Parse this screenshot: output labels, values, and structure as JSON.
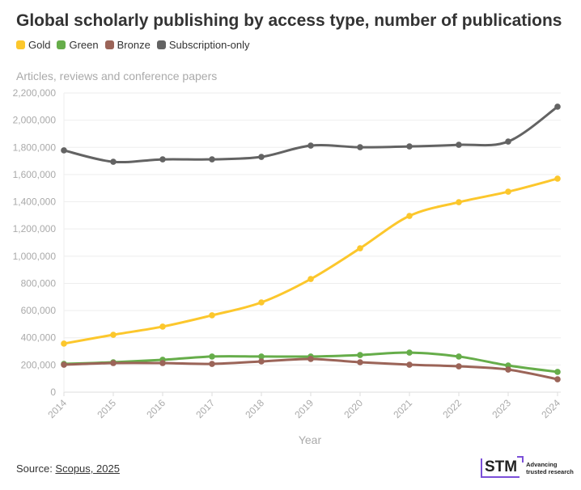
{
  "header": {
    "title": "Global scholarly publishing by access type, number of publications",
    "subtitle": "Articles, reviews and conference papers"
  },
  "footer": {
    "source_label": "Source: ",
    "source_link": "Scopus, 2025",
    "logo_text": "STM",
    "logo_tagline": "Advancing trusted research"
  },
  "chart_data": {
    "type": "line",
    "title": "Global scholarly publishing by access type, number of publications",
    "subtitle": "Articles, reviews and conference papers",
    "xlabel": "Year",
    "ylabel": "",
    "x": [
      "2014",
      "2015",
      "2016",
      "2017",
      "2018",
      "2019",
      "2020",
      "2021",
      "2022",
      "2023",
      "2024"
    ],
    "ylim": [
      0,
      2200000
    ],
    "yticks": [
      0,
      200000,
      400000,
      600000,
      800000,
      1000000,
      1200000,
      1400000,
      1600000,
      1800000,
      2000000,
      2200000
    ],
    "ytick_labels": [
      "0",
      "200,000",
      "400,000",
      "600,000",
      "800,000",
      "1,000,000",
      "1,200,000",
      "1,400,000",
      "1,600,000",
      "1,800,000",
      "2,000,000",
      "2,200,000"
    ],
    "grid": true,
    "legend": "top-left",
    "series": [
      {
        "name": "Gold",
        "color": "#fcc72c",
        "values": [
          357000,
          422000,
          482000,
          565000,
          660000,
          832000,
          1058000,
          1296000,
          1397000,
          1474000,
          1570000
        ]
      },
      {
        "name": "Green",
        "color": "#66ad4a",
        "values": [
          208000,
          220000,
          238000,
          262000,
          262000,
          262000,
          273000,
          291000,
          262000,
          196000,
          149000
        ]
      },
      {
        "name": "Bronze",
        "color": "#9b6458",
        "values": [
          202000,
          214000,
          214000,
          208000,
          226000,
          244000,
          220000,
          202000,
          190000,
          166000,
          95000
        ]
      },
      {
        "name": "Subscription-only",
        "color": "#636363",
        "values": [
          1778000,
          1694000,
          1712000,
          1712000,
          1730000,
          1813000,
          1801000,
          1807000,
          1819000,
          1843000,
          2099000
        ]
      }
    ]
  }
}
